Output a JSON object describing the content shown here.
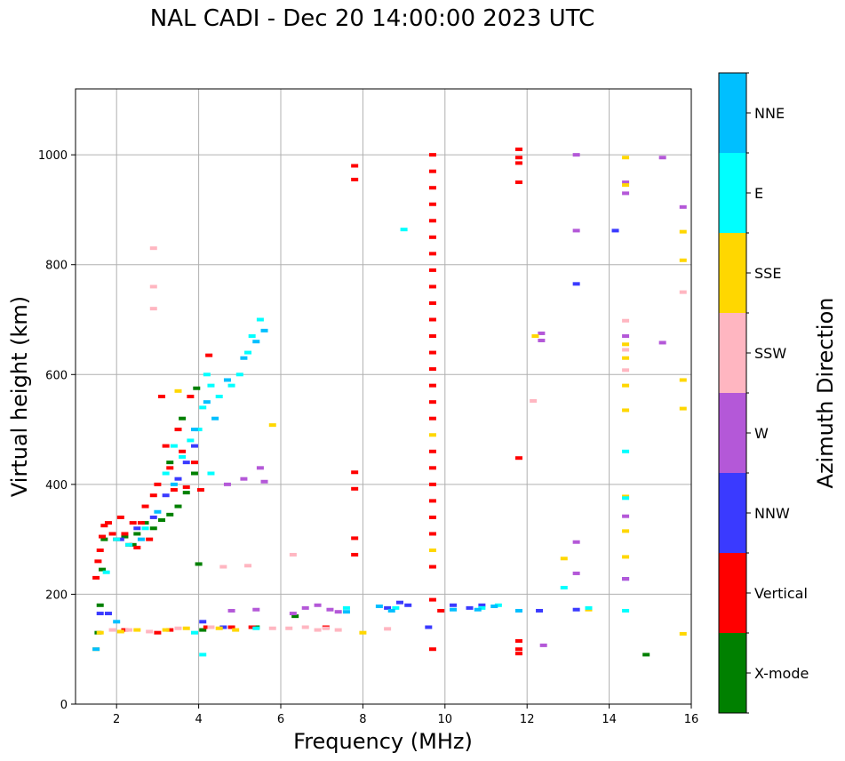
{
  "chart_data": {
    "type": "scatter",
    "title": "NAL CADI - Dec 20 14:00:00 2023 UTC",
    "xlabel": "Frequency (MHz)",
    "ylabel": "Virtual height (km)",
    "xlim": [
      1,
      16
    ],
    "ylim": [
      0,
      1120
    ],
    "xticks": [
      2,
      4,
      6,
      8,
      10,
      12,
      14,
      16
    ],
    "yticks": [
      0,
      200,
      400,
      600,
      800,
      1000
    ],
    "grid": true,
    "colorbar": {
      "label": "Azimuth Direction",
      "categories": [
        {
          "name": "X-mode",
          "color": "#008000"
        },
        {
          "name": "Vertical",
          "color": "#ff0000"
        },
        {
          "name": "NNW",
          "color": "#3a3aff"
        },
        {
          "name": "W",
          "color": "#b458d8"
        },
        {
          "name": "SSW",
          "color": "#ffb6c1"
        },
        {
          "name": "SSE",
          "color": "#ffd700"
        },
        {
          "name": "E",
          "color": "#00ffff"
        },
        {
          "name": "NNE",
          "color": "#00bfff"
        }
      ]
    },
    "series": [
      {
        "name": "X-mode",
        "points": [
          [
            1.55,
            130
          ],
          [
            1.6,
            180
          ],
          [
            1.65,
            245
          ],
          [
            1.7,
            300
          ],
          [
            2.2,
            305
          ],
          [
            2.5,
            310
          ],
          [
            2.7,
            330
          ],
          [
            2.9,
            320
          ],
          [
            3.1,
            335
          ],
          [
            3.3,
            345
          ],
          [
            3.5,
            360
          ],
          [
            3.7,
            385
          ],
          [
            3.9,
            420
          ],
          [
            4.0,
            255
          ],
          [
            3.95,
            575
          ],
          [
            3.6,
            520
          ],
          [
            3.3,
            440
          ],
          [
            2.4,
            290
          ],
          [
            4.1,
            135
          ],
          [
            5.4,
            140
          ],
          [
            6.35,
            160
          ],
          [
            14.9,
            90
          ]
        ]
      },
      {
        "name": "Vertical",
        "points": [
          [
            1.5,
            230
          ],
          [
            1.55,
            260
          ],
          [
            1.6,
            280
          ],
          [
            1.65,
            305
          ],
          [
            1.7,
            325
          ],
          [
            1.8,
            330
          ],
          [
            1.9,
            310
          ],
          [
            2.0,
            300
          ],
          [
            2.1,
            340
          ],
          [
            2.2,
            310
          ],
          [
            2.3,
            290
          ],
          [
            2.4,
            330
          ],
          [
            2.5,
            285
          ],
          [
            2.6,
            330
          ],
          [
            2.7,
            360
          ],
          [
            2.8,
            300
          ],
          [
            2.9,
            380
          ],
          [
            3.0,
            400
          ],
          [
            3.1,
            560
          ],
          [
            3.2,
            470
          ],
          [
            3.3,
            430
          ],
          [
            3.4,
            390
          ],
          [
            3.5,
            500
          ],
          [
            3.6,
            460
          ],
          [
            3.7,
            395
          ],
          [
            3.8,
            560
          ],
          [
            3.9,
            440
          ],
          [
            4.05,
            390
          ],
          [
            4.25,
            635
          ],
          [
            2.2,
            135
          ],
          [
            3.0,
            130
          ],
          [
            3.3,
            135
          ],
          [
            4.2,
            140
          ],
          [
            4.8,
            140
          ],
          [
            5.3,
            140
          ],
          [
            7.1,
            140
          ],
          [
            7.8,
            980
          ],
          [
            7.8,
            955
          ],
          [
            7.8,
            422
          ],
          [
            7.8,
            392
          ],
          [
            7.8,
            302
          ],
          [
            7.8,
            272
          ],
          [
            9.7,
            1000
          ],
          [
            9.7,
            970
          ],
          [
            9.7,
            940
          ],
          [
            9.7,
            910
          ],
          [
            9.7,
            880
          ],
          [
            9.7,
            850
          ],
          [
            9.7,
            820
          ],
          [
            9.7,
            790
          ],
          [
            9.7,
            760
          ],
          [
            9.7,
            730
          ],
          [
            9.7,
            700
          ],
          [
            9.7,
            670
          ],
          [
            9.7,
            640
          ],
          [
            9.7,
            610
          ],
          [
            9.7,
            580
          ],
          [
            9.7,
            550
          ],
          [
            9.7,
            520
          ],
          [
            9.7,
            460
          ],
          [
            9.7,
            430
          ],
          [
            9.7,
            400
          ],
          [
            9.7,
            370
          ],
          [
            9.7,
            340
          ],
          [
            9.7,
            310
          ],
          [
            9.7,
            250
          ],
          [
            9.7,
            190
          ],
          [
            9.7,
            100
          ],
          [
            9.9,
            170
          ],
          [
            11.8,
            1010
          ],
          [
            11.8,
            995
          ],
          [
            11.8,
            985
          ],
          [
            11.8,
            950
          ],
          [
            11.8,
            448
          ],
          [
            11.8,
            115
          ],
          [
            11.8,
            100
          ],
          [
            11.8,
            92
          ]
        ]
      },
      {
        "name": "NNW",
        "points": [
          [
            1.6,
            165
          ],
          [
            1.8,
            165
          ],
          [
            2.1,
            300
          ],
          [
            2.5,
            320
          ],
          [
            2.9,
            340
          ],
          [
            3.2,
            380
          ],
          [
            3.5,
            410
          ],
          [
            3.7,
            440
          ],
          [
            3.9,
            470
          ],
          [
            4.1,
            150
          ],
          [
            4.6,
            140
          ],
          [
            8.6,
            175
          ],
          [
            8.9,
            185
          ],
          [
            9.1,
            180
          ],
          [
            9.6,
            140
          ],
          [
            10.2,
            180
          ],
          [
            10.6,
            175
          ],
          [
            10.9,
            180
          ],
          [
            12.3,
            170
          ],
          [
            13.2,
            765
          ],
          [
            13.2,
            172
          ],
          [
            14.15,
            862
          ],
          [
            14.4,
            228
          ]
        ]
      },
      {
        "name": "W",
        "points": [
          [
            4.7,
            400
          ],
          [
            5.1,
            410
          ],
          [
            5.5,
            430
          ],
          [
            5.6,
            405
          ],
          [
            4.8,
            170
          ],
          [
            5.4,
            172
          ],
          [
            6.3,
            165
          ],
          [
            6.6,
            175
          ],
          [
            6.9,
            180
          ],
          [
            7.2,
            172
          ],
          [
            7.4,
            168
          ],
          [
            12.35,
            675
          ],
          [
            12.35,
            662
          ],
          [
            12.4,
            107
          ],
          [
            13.2,
            1000
          ],
          [
            13.2,
            862
          ],
          [
            13.2,
            295
          ],
          [
            13.2,
            238
          ],
          [
            14.4,
            950
          ],
          [
            14.4,
            930
          ],
          [
            14.4,
            670
          ],
          [
            14.4,
            342
          ],
          [
            14.4,
            228
          ],
          [
            15.3,
            995
          ],
          [
            15.3,
            658
          ],
          [
            15.8,
            905
          ]
        ]
      },
      {
        "name": "SSW",
        "points": [
          [
            1.9,
            135
          ],
          [
            2.3,
            135
          ],
          [
            2.8,
            132
          ],
          [
            2.9,
            830
          ],
          [
            2.9,
            760
          ],
          [
            2.9,
            720
          ],
          [
            3.5,
            138
          ],
          [
            4.3,
            140
          ],
          [
            4.6,
            250
          ],
          [
            5.2,
            252
          ],
          [
            6.3,
            272
          ],
          [
            5.8,
            138
          ],
          [
            6.2,
            138
          ],
          [
            6.6,
            140
          ],
          [
            6.9,
            135
          ],
          [
            7.1,
            138
          ],
          [
            7.4,
            135
          ],
          [
            8.6,
            137
          ],
          [
            12.15,
            552
          ],
          [
            14.4,
            698
          ],
          [
            14.4,
            645
          ],
          [
            14.4,
            608
          ],
          [
            15.8,
            750
          ]
        ]
      },
      {
        "name": "SSE",
        "points": [
          [
            1.5,
            100
          ],
          [
            1.6,
            130
          ],
          [
            2.1,
            132
          ],
          [
            2.5,
            135
          ],
          [
            3.2,
            135
          ],
          [
            3.5,
            570
          ],
          [
            3.7,
            138
          ],
          [
            4.5,
            138
          ],
          [
            4.9,
            135
          ],
          [
            5.8,
            508
          ],
          [
            8.0,
            130
          ],
          [
            9.7,
            490
          ],
          [
            9.7,
            280
          ],
          [
            12.2,
            670
          ],
          [
            12.9,
            265
          ],
          [
            13.5,
            172
          ],
          [
            14.4,
            995
          ],
          [
            14.4,
            945
          ],
          [
            14.4,
            655
          ],
          [
            14.4,
            630
          ],
          [
            14.4,
            580
          ],
          [
            14.4,
            535
          ],
          [
            14.4,
            378
          ],
          [
            14.4,
            315
          ],
          [
            14.4,
            268
          ],
          [
            15.8,
            860
          ],
          [
            15.8,
            808
          ],
          [
            15.8,
            590
          ],
          [
            15.8,
            538
          ],
          [
            15.8,
            128
          ]
        ]
      },
      {
        "name": "E",
        "points": [
          [
            1.75,
            240
          ],
          [
            2.0,
            300
          ],
          [
            2.3,
            290
          ],
          [
            2.7,
            320
          ],
          [
            3.2,
            420
          ],
          [
            3.4,
            470
          ],
          [
            3.6,
            450
          ],
          [
            3.8,
            480
          ],
          [
            4.0,
            500
          ],
          [
            4.1,
            540
          ],
          [
            4.2,
            600
          ],
          [
            4.3,
            580
          ],
          [
            4.5,
            560
          ],
          [
            4.8,
            580
          ],
          [
            5.0,
            600
          ],
          [
            5.2,
            640
          ],
          [
            5.3,
            670
          ],
          [
            5.5,
            700
          ],
          [
            4.3,
            420
          ],
          [
            4.1,
            90
          ],
          [
            3.9,
            130
          ],
          [
            5.4,
            138
          ],
          [
            7.6,
            175
          ],
          [
            8.8,
            175
          ],
          [
            9.0,
            864
          ],
          [
            10.9,
            175
          ],
          [
            11.3,
            180
          ],
          [
            12.9,
            212
          ],
          [
            13.5,
            175
          ],
          [
            14.4,
            460
          ],
          [
            14.4,
            375
          ],
          [
            14.4,
            170
          ]
        ]
      },
      {
        "name": "NNE",
        "points": [
          [
            1.5,
            100
          ],
          [
            2.0,
            150
          ],
          [
            2.6,
            300
          ],
          [
            3.0,
            350
          ],
          [
            3.4,
            400
          ],
          [
            3.9,
            500
          ],
          [
            4.2,
            550
          ],
          [
            4.4,
            520
          ],
          [
            4.7,
            590
          ],
          [
            5.1,
            630
          ],
          [
            5.4,
            660
          ],
          [
            5.6,
            680
          ],
          [
            7.6,
            168
          ],
          [
            8.4,
            178
          ],
          [
            8.7,
            170
          ],
          [
            10.2,
            172
          ],
          [
            10.8,
            172
          ],
          [
            11.2,
            178
          ],
          [
            11.8,
            170
          ]
        ]
      }
    ]
  }
}
